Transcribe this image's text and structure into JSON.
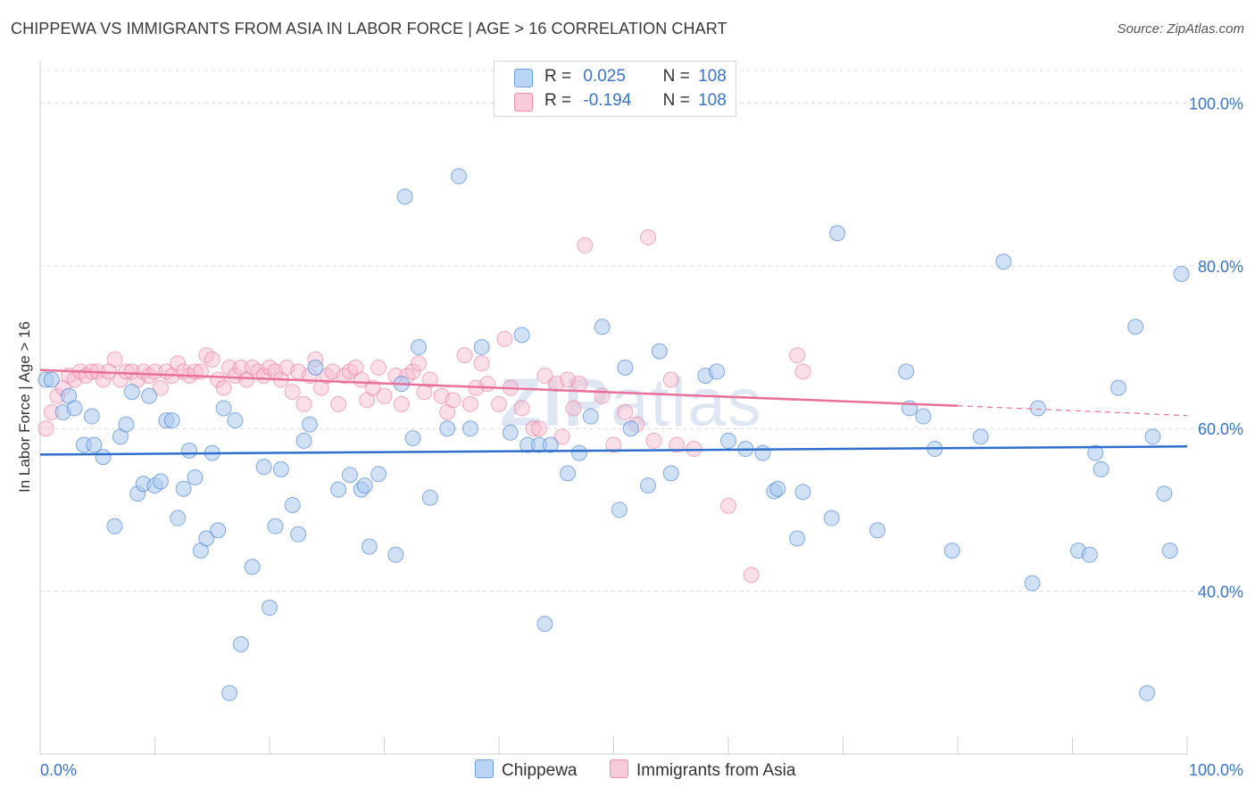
{
  "title": "CHIPPEWA VS IMMIGRANTS FROM ASIA IN LABOR FORCE | AGE > 16 CORRELATION CHART",
  "source": "Source: ZipAtlas.com",
  "watermark": {
    "zip": "ZIP",
    "atlas": "atlas"
  },
  "legend_top": [
    {
      "r_label": "R =",
      "r_value": "0.025",
      "n_label": "N =",
      "n_value": "108"
    },
    {
      "r_label": "R =",
      "r_value": "-0.194",
      "n_label": "N =",
      "n_value": "108"
    }
  ],
  "chart_data": {
    "type": "scatter",
    "title": "CHIPPEWA VS IMMIGRANTS FROM ASIA IN LABOR FORCE | AGE > 16 CORRELATION CHART",
    "ylabel": "In Labor Force | Age > 16",
    "xlabel": "",
    "xlim": [
      0,
      100
    ],
    "ylim": [
      20,
      104
    ],
    "x_tick_labels": [
      "0.0%",
      "100.0%"
    ],
    "y_ticks": [
      40,
      60,
      80,
      100
    ],
    "y_tick_labels": [
      "40.0%",
      "60.0%",
      "80.0%",
      "100.0%"
    ],
    "grid": true,
    "legend_position": "top-center",
    "colors": {
      "chippewa_fill": "#a9c8ef",
      "chippewa_line": "#2f6fcc",
      "asia_fill": "#f7b8cb",
      "asia_line": "#e8709a",
      "tick_label": "#3a74c4"
    },
    "series": [
      {
        "name": "Chippewa",
        "trend": {
          "x": [
            0,
            100
          ],
          "y": [
            56.8,
            57.8
          ]
        },
        "points": [
          [
            0.5,
            66
          ],
          [
            1,
            66
          ],
          [
            2,
            62
          ],
          [
            2.5,
            64
          ],
          [
            3,
            62.5
          ],
          [
            3.8,
            58
          ],
          [
            4.5,
            61.5
          ],
          [
            4.7,
            58
          ],
          [
            5.5,
            56.5
          ],
          [
            6.5,
            48
          ],
          [
            7,
            59
          ],
          [
            7.5,
            60.5
          ],
          [
            8,
            64.5
          ],
          [
            8.5,
            52
          ],
          [
            9,
            53.2
          ],
          [
            9.5,
            64
          ],
          [
            10,
            53
          ],
          [
            10.5,
            53.5
          ],
          [
            11,
            61
          ],
          [
            11.5,
            61
          ],
          [
            12,
            49
          ],
          [
            12.5,
            52.6
          ],
          [
            13,
            57.3
          ],
          [
            13.5,
            54
          ],
          [
            14,
            45
          ],
          [
            14.5,
            46.5
          ],
          [
            15,
            57
          ],
          [
            15.5,
            47.5
          ],
          [
            16,
            62.5
          ],
          [
            16.5,
            27.5
          ],
          [
            17,
            61
          ],
          [
            17.5,
            33.5
          ],
          [
            18.5,
            43
          ],
          [
            19.5,
            55.3
          ],
          [
            20,
            38
          ],
          [
            20.5,
            48
          ],
          [
            21,
            55
          ],
          [
            22,
            50.6
          ],
          [
            22.5,
            47
          ],
          [
            23,
            58.5
          ],
          [
            23.5,
            60.5
          ],
          [
            24,
            67.5
          ],
          [
            26,
            52.5
          ],
          [
            27,
            54.3
          ],
          [
            28,
            52.5
          ],
          [
            28.3,
            53
          ],
          [
            28.7,
            45.5
          ],
          [
            29.5,
            54.4
          ],
          [
            31,
            44.5
          ],
          [
            31.5,
            65.5
          ],
          [
            31.8,
            88.5
          ],
          [
            32.5,
            58.8
          ],
          [
            33,
            70
          ],
          [
            34,
            51.5
          ],
          [
            35.5,
            60
          ],
          [
            36.5,
            91
          ],
          [
            37.5,
            60
          ],
          [
            38.5,
            70
          ],
          [
            41,
            59.5
          ],
          [
            42,
            71.5
          ],
          [
            42.5,
            58
          ],
          [
            43.5,
            58
          ],
          [
            44,
            36
          ],
          [
            44.5,
            58
          ],
          [
            46,
            54.5
          ],
          [
            47,
            57
          ],
          [
            48,
            61.5
          ],
          [
            49,
            72.5
          ],
          [
            50.5,
            50
          ],
          [
            51,
            67.5
          ],
          [
            51.5,
            60
          ],
          [
            53,
            53
          ],
          [
            54,
            69.5
          ],
          [
            55,
            54.5
          ],
          [
            58,
            66.5
          ],
          [
            59,
            67
          ],
          [
            60,
            58.5
          ],
          [
            61.5,
            57.5
          ],
          [
            63,
            57
          ],
          [
            64,
            52.3
          ],
          [
            64.3,
            52.6
          ],
          [
            66,
            46.5
          ],
          [
            66.5,
            52.2
          ],
          [
            69,
            49
          ],
          [
            69.5,
            84
          ],
          [
            73,
            47.5
          ],
          [
            75.5,
            67
          ],
          [
            75.8,
            62.5
          ],
          [
            77,
            61.5
          ],
          [
            78,
            57.5
          ],
          [
            79.5,
            45
          ],
          [
            82,
            59
          ],
          [
            84,
            80.5
          ],
          [
            86.5,
            41
          ],
          [
            87,
            62.5
          ],
          [
            90.5,
            45
          ],
          [
            91.5,
            44.5
          ],
          [
            92,
            57
          ],
          [
            92.5,
            55
          ],
          [
            94,
            65
          ],
          [
            95.5,
            72.5
          ],
          [
            96.5,
            27.5
          ],
          [
            97,
            59
          ],
          [
            98,
            52
          ],
          [
            98.5,
            45
          ],
          [
            99.5,
            79
          ]
        ]
      },
      {
        "name": "Immigrants from Asia",
        "trend": {
          "x": [
            0,
            80
          ],
          "y": [
            67.2,
            62.8
          ]
        },
        "trend_dashed_extension": {
          "x": [
            80,
            100
          ],
          "y": [
            62.8,
            61.6
          ]
        },
        "points": [
          [
            0.5,
            60
          ],
          [
            1,
            62
          ],
          [
            1.5,
            64
          ],
          [
            2,
            65
          ],
          [
            2.5,
            66.5
          ],
          [
            3,
            66
          ],
          [
            3.5,
            67
          ],
          [
            4,
            66.5
          ],
          [
            4.5,
            67
          ],
          [
            5,
            67
          ],
          [
            5.5,
            66
          ],
          [
            6,
            67
          ],
          [
            6.5,
            68.5
          ],
          [
            7,
            66
          ],
          [
            7.5,
            67
          ],
          [
            8,
            67
          ],
          [
            8.5,
            66
          ],
          [
            9,
            67
          ],
          [
            9.5,
            66.5
          ],
          [
            10,
            67
          ],
          [
            10.5,
            65
          ],
          [
            11,
            67
          ],
          [
            11.5,
            66.5
          ],
          [
            12,
            68
          ],
          [
            12.5,
            67
          ],
          [
            13,
            66.5
          ],
          [
            13.5,
            67
          ],
          [
            14,
            67
          ],
          [
            14.5,
            69
          ],
          [
            15,
            68.5
          ],
          [
            15.5,
            66
          ],
          [
            16,
            65
          ],
          [
            16.5,
            67.5
          ],
          [
            17,
            66.5
          ],
          [
            17.5,
            67.5
          ],
          [
            18,
            66
          ],
          [
            18.5,
            67.5
          ],
          [
            19,
            67
          ],
          [
            19.5,
            66.5
          ],
          [
            20,
            67.5
          ],
          [
            20.5,
            67
          ],
          [
            21,
            66
          ],
          [
            21.5,
            67.5
          ],
          [
            22,
            64.5
          ],
          [
            22.5,
            67
          ],
          [
            23,
            63
          ],
          [
            23.5,
            66.5
          ],
          [
            24,
            68.5
          ],
          [
            24.5,
            65
          ],
          [
            25,
            66.5
          ],
          [
            25.5,
            67
          ],
          [
            26,
            63
          ],
          [
            26.5,
            66.5
          ],
          [
            27,
            67
          ],
          [
            27.5,
            67.5
          ],
          [
            28,
            66
          ],
          [
            28.5,
            63.5
          ],
          [
            29,
            65
          ],
          [
            29.5,
            67.5
          ],
          [
            30,
            64
          ],
          [
            31,
            66.5
          ],
          [
            31.5,
            63
          ],
          [
            32,
            66.5
          ],
          [
            32.5,
            67
          ],
          [
            33,
            68
          ],
          [
            33.5,
            64.5
          ],
          [
            34,
            66
          ],
          [
            35,
            64
          ],
          [
            35.5,
            62
          ],
          [
            36,
            63.5
          ],
          [
            37,
            69
          ],
          [
            37.5,
            63
          ],
          [
            38,
            65
          ],
          [
            38.5,
            68
          ],
          [
            39,
            65.5
          ],
          [
            40,
            63
          ],
          [
            40.5,
            71
          ],
          [
            41,
            65
          ],
          [
            42,
            62.5
          ],
          [
            43,
            60
          ],
          [
            43.5,
            60
          ],
          [
            44,
            66.5
          ],
          [
            45,
            65.5
          ],
          [
            45.5,
            59
          ],
          [
            46,
            66
          ],
          [
            46.5,
            62.5
          ],
          [
            47,
            65.5
          ],
          [
            47.5,
            82.5
          ],
          [
            49,
            64
          ],
          [
            50,
            58
          ],
          [
            51,
            62
          ],
          [
            52,
            60.5
          ],
          [
            53,
            83.5
          ],
          [
            53.5,
            58.5
          ],
          [
            55,
            66
          ],
          [
            55.5,
            58
          ],
          [
            57,
            57.5
          ],
          [
            60,
            50.5
          ],
          [
            62,
            42
          ],
          [
            66,
            69
          ],
          [
            66.5,
            67
          ]
        ]
      }
    ]
  },
  "legend_bottom": [
    {
      "label": "Chippewa"
    },
    {
      "label": "Immigrants from Asia"
    }
  ]
}
